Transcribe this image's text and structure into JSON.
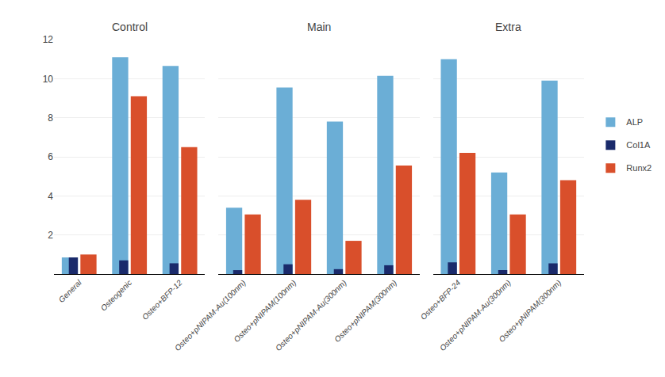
{
  "chart_data": [
    {
      "type": "bar",
      "title": "Control",
      "categories": [
        "General",
        "Osteogenic",
        "Osteo+BFP-12"
      ],
      "series": [
        {
          "name": "ALP",
          "color": "#6BAED6",
          "values": [
            0.85,
            11.1,
            10.65
          ]
        },
        {
          "name": "Col1A",
          "color": "#1A2A6B",
          "values": [
            0.85,
            0.7,
            0.55
          ]
        },
        {
          "name": "Runx2",
          "color": "#D94F2B",
          "values": [
            1.0,
            9.1,
            6.5
          ]
        }
      ],
      "ylim": [
        0,
        12
      ],
      "yticks": [
        2,
        4,
        6,
        8,
        10,
        12
      ],
      "grid": true,
      "legend": "right"
    },
    {
      "type": "bar",
      "title": "Main",
      "categories": [
        "Osteo+pNIPAM-Au(100nm)",
        "Osteo+pNIPAM(100nm)",
        "Osteo+pNIPAM-Au(300nm)",
        "Osteo+pNIPAM(300nm)"
      ],
      "series": [
        {
          "name": "ALP",
          "color": "#6BAED6",
          "values": [
            3.4,
            9.55,
            7.8,
            10.15
          ]
        },
        {
          "name": "Col1A",
          "color": "#1A2A6B",
          "values": [
            0.2,
            0.5,
            0.25,
            0.45
          ]
        },
        {
          "name": "Runx2",
          "color": "#D94F2B",
          "values": [
            3.05,
            3.8,
            1.7,
            5.55
          ]
        }
      ],
      "ylim": [
        0,
        12
      ],
      "yticks": [
        2,
        4,
        6,
        8,
        10,
        12
      ],
      "grid": true,
      "tick_labels": "x"
    },
    {
      "type": "bar",
      "title": "Extra",
      "categories": [
        "Osteo+BFP-24",
        "Osteo+pNIPAM-Au(300nm)",
        "Osteo+pNIPAM(300nm)"
      ],
      "series": [
        {
          "name": "ALP",
          "color": "#6BAED6",
          "values": [
            11.0,
            5.2,
            9.9
          ]
        },
        {
          "name": "Col1A",
          "color": "#1A2A6B",
          "values": [
            0.6,
            0.2,
            0.55
          ]
        },
        {
          "name": "Runx2",
          "color": "#D94F2B",
          "values": [
            6.2,
            3.05,
            4.8
          ]
        }
      ],
      "ylim": [
        0,
        12
      ],
      "yticks": [
        2,
        4,
        6,
        8,
        10,
        12
      ],
      "grid": true,
      "tick_labels": "x"
    }
  ]
}
